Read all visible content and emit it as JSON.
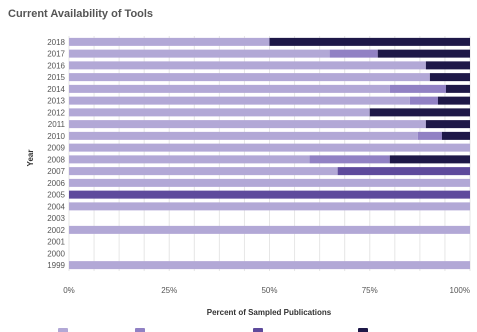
{
  "chart_data": {
    "type": "bar",
    "stacked": true,
    "orientation": "horizontal",
    "title": "Current Availability of Tools",
    "xlabel": "Percent of Sampled Publications",
    "ylabel": "Year",
    "xlim": [
      0,
      100
    ],
    "x_ticks": [
      "0%",
      "25%",
      "50%",
      "75%",
      "100%"
    ],
    "grid": true,
    "legend_position": "bottom",
    "categories": [
      "2018",
      "2017",
      "2016",
      "2015",
      "2014",
      "2013",
      "2012",
      "2011",
      "2010",
      "2009",
      "2008",
      "2007",
      "2006",
      "2005",
      "2004",
      "2003",
      "2002",
      "2001",
      "2000",
      "1999"
    ],
    "series": [
      {
        "color": "#b2a8d6",
        "values": [
          50,
          65,
          89,
          90,
          80,
          85,
          75,
          89,
          87,
          100,
          60,
          67,
          100,
          0,
          100,
          0,
          100,
          0,
          0,
          100
        ]
      },
      {
        "color": "#9181c4",
        "values": [
          0,
          12,
          0,
          0,
          14,
          7,
          0,
          0,
          6,
          0,
          20,
          0,
          0,
          0,
          0,
          0,
          0,
          0,
          0,
          0
        ]
      },
      {
        "color": "#5e4a9c",
        "values": [
          0,
          0,
          0,
          0,
          0,
          0,
          0,
          0,
          0,
          0,
          0,
          33,
          0,
          100,
          0,
          0,
          0,
          0,
          0,
          0
        ]
      },
      {
        "color": "#1e1848",
        "values": [
          50,
          23,
          11,
          10,
          6,
          8,
          25,
          11,
          7,
          0,
          20,
          0,
          0,
          0,
          0,
          0,
          0,
          0,
          0,
          0
        ]
      }
    ]
  }
}
